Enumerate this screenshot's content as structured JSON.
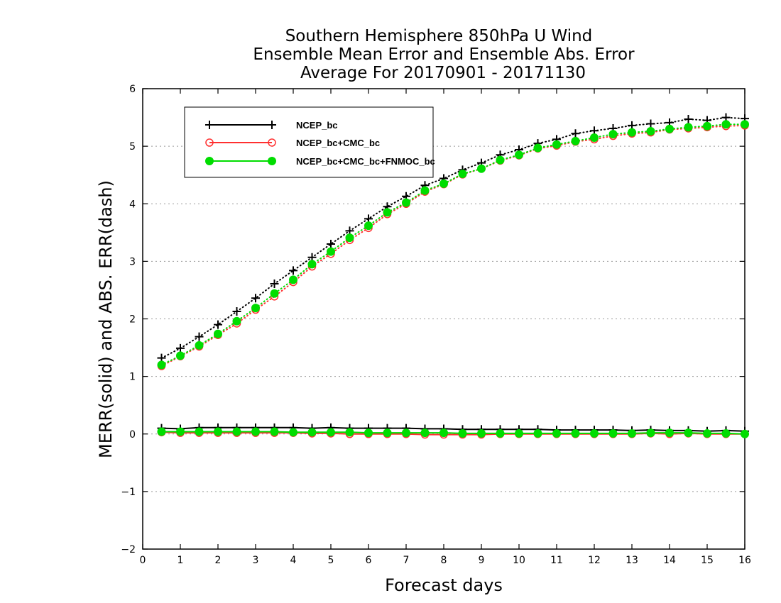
{
  "chart_data": {
    "type": "line",
    "title": [
      "Southern Hemisphere 850hPa U Wind",
      "Ensemble Mean Error and Ensemble Abs. Error",
      "Average For 20170901 - 20171130"
    ],
    "xlabel": "Forecast days",
    "ylabel": "MERR(solid) and ABS. ERR(dash)",
    "xlim": [
      0,
      16
    ],
    "ylim": [
      -2,
      6
    ],
    "xticks": [
      "0",
      "1",
      "2",
      "3",
      "4",
      "5",
      "6",
      "7",
      "8",
      "9",
      "10",
      "11",
      "12",
      "13",
      "14",
      "15",
      "16"
    ],
    "yticks": [
      "−2",
      "−1",
      "0",
      "1",
      "2",
      "3",
      "4",
      "5",
      "6"
    ],
    "grid": "horizontal dotted",
    "legend_position": "top-left",
    "x": [
      0.5,
      1,
      1.5,
      2,
      2.5,
      3,
      3.5,
      4,
      4.5,
      5,
      5.5,
      6,
      6.5,
      7,
      7.5,
      8,
      8.5,
      9,
      9.5,
      10,
      10.5,
      11,
      11.5,
      12,
      12.5,
      13,
      13.5,
      14,
      14.5,
      15,
      15.5,
      16
    ],
    "series": [
      {
        "name": "NCEP_bc",
        "color": "#000000",
        "marker": "plus",
        "abs_err": [
          1.32,
          1.49,
          1.69,
          1.9,
          2.13,
          2.36,
          2.61,
          2.84,
          3.07,
          3.3,
          3.53,
          3.74,
          3.95,
          4.13,
          4.32,
          4.44,
          4.59,
          4.71,
          4.85,
          4.94,
          5.05,
          5.12,
          5.22,
          5.27,
          5.31,
          5.36,
          5.39,
          5.41,
          5.47,
          5.45,
          5.5,
          5.48
        ],
        "mean_err": [
          0.1,
          0.09,
          0.11,
          0.11,
          0.11,
          0.11,
          0.11,
          0.11,
          0.1,
          0.11,
          0.1,
          0.1,
          0.1,
          0.1,
          0.09,
          0.09,
          0.08,
          0.08,
          0.08,
          0.08,
          0.08,
          0.07,
          0.07,
          0.07,
          0.07,
          0.06,
          0.07,
          0.06,
          0.06,
          0.05,
          0.06,
          0.05
        ]
      },
      {
        "name": "NCEP_bc+CMC_bc",
        "color": "#ff3030",
        "marker": "open-circle",
        "abs_err": [
          1.18,
          1.35,
          1.52,
          1.72,
          1.92,
          2.16,
          2.39,
          2.64,
          2.91,
          3.13,
          3.37,
          3.58,
          3.82,
          4.0,
          4.21,
          4.34,
          4.51,
          4.61,
          4.75,
          4.84,
          4.96,
          5.01,
          5.08,
          5.12,
          5.18,
          5.22,
          5.24,
          5.29,
          5.31,
          5.33,
          5.35,
          5.36
        ],
        "mean_err": [
          0.03,
          0.02,
          0.02,
          0.02,
          0.02,
          0.02,
          0.02,
          0.02,
          0.01,
          0.01,
          0.0,
          0.0,
          0.0,
          0.0,
          -0.01,
          -0.01,
          -0.01,
          -0.01,
          0.0,
          0.0,
          0.0,
          0.0,
          0.0,
          0.0,
          0.0,
          0.0,
          0.01,
          0.0,
          0.01,
          0.0,
          0.0,
          0.0
        ]
      },
      {
        "name": "NCEP_bc+CMC_bc+FNMOC_bc",
        "color": "#00dd00",
        "marker": "filled-circle",
        "abs_err": [
          1.2,
          1.36,
          1.54,
          1.74,
          1.96,
          2.19,
          2.44,
          2.68,
          2.95,
          3.17,
          3.41,
          3.62,
          3.85,
          4.02,
          4.23,
          4.35,
          4.52,
          4.61,
          4.76,
          4.85,
          4.97,
          5.03,
          5.09,
          5.15,
          5.21,
          5.24,
          5.26,
          5.3,
          5.33,
          5.35,
          5.38,
          5.38
        ],
        "mean_err": [
          0.04,
          0.04,
          0.04,
          0.04,
          0.04,
          0.04,
          0.04,
          0.03,
          0.03,
          0.03,
          0.03,
          0.02,
          0.02,
          0.02,
          0.02,
          0.02,
          0.01,
          0.01,
          0.01,
          0.01,
          0.01,
          0.01,
          0.01,
          0.01,
          0.01,
          0.01,
          0.02,
          0.02,
          0.02,
          0.01,
          0.01,
          0.0
        ]
      }
    ]
  }
}
